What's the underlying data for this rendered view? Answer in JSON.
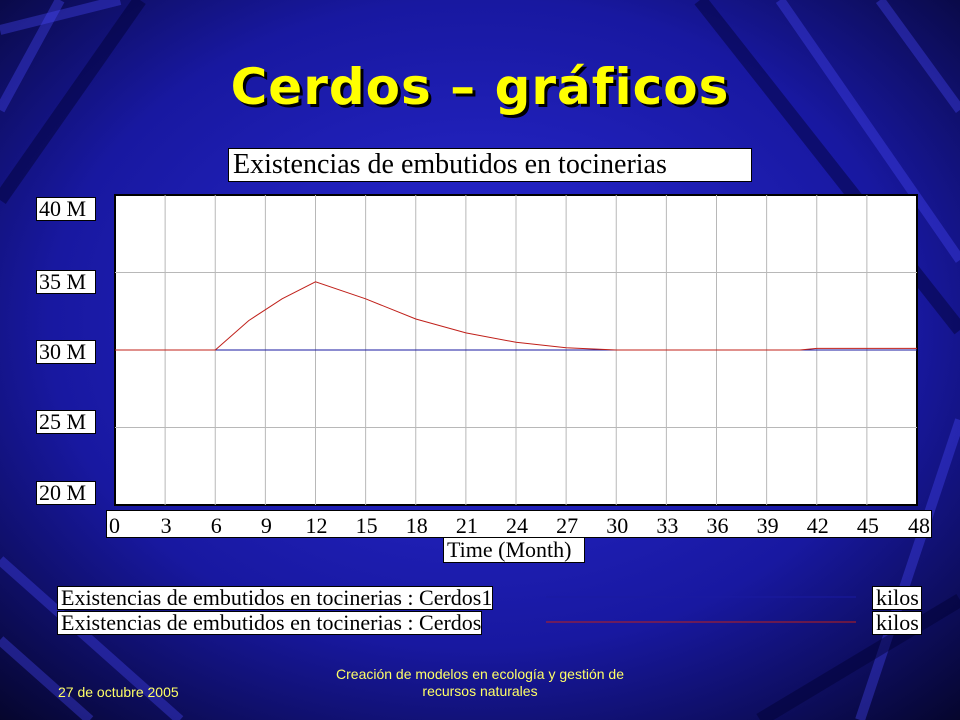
{
  "slide": {
    "title": "Cerdos – gráficos",
    "footer_date": "27 de octubre 2005",
    "footer_center": "Creación de modelos en ecología y gestión de recursos naturales"
  },
  "colors": {
    "background": "#0a0a3a",
    "title": "#ffff00",
    "footer": "#ffff66",
    "series_cerdos1": "#1a1aa0",
    "series_cerdos": "#c0201a"
  },
  "chart_data": {
    "type": "line",
    "title": "Existencias de embutidos en tocinerias",
    "xlabel": "Time (Month)",
    "ylabel": "",
    "x_ticks": [
      0,
      3,
      6,
      9,
      12,
      15,
      18,
      21,
      24,
      27,
      30,
      33,
      36,
      39,
      42,
      45,
      48
    ],
    "y_ticks": [
      "20 M",
      "25 M",
      "30 M",
      "35 M",
      "40 M"
    ],
    "xlim": [
      0,
      48
    ],
    "ylim": [
      20000000,
      40000000
    ],
    "grid": true,
    "series": [
      {
        "name": "Existencias de embutidos en tocinerias : Cerdos1",
        "unit": "kilos",
        "color": "#1a1aa0",
        "x": [
          0,
          48
        ],
        "values": [
          30000000,
          30000000
        ]
      },
      {
        "name": "Existencias de embutidos en tocinerias : Cerdos",
        "unit": "kilos",
        "color": "#c0201a",
        "x": [
          0,
          6,
          8,
          10,
          12,
          15,
          18,
          21,
          24,
          27,
          29,
          30,
          41,
          42,
          48
        ],
        "values": [
          30000000,
          30000000,
          31900000,
          33300000,
          34400000,
          33300000,
          32000000,
          31100000,
          30500000,
          30150000,
          30050000,
          30000000,
          30000000,
          30100000,
          30100000
        ]
      }
    ]
  }
}
